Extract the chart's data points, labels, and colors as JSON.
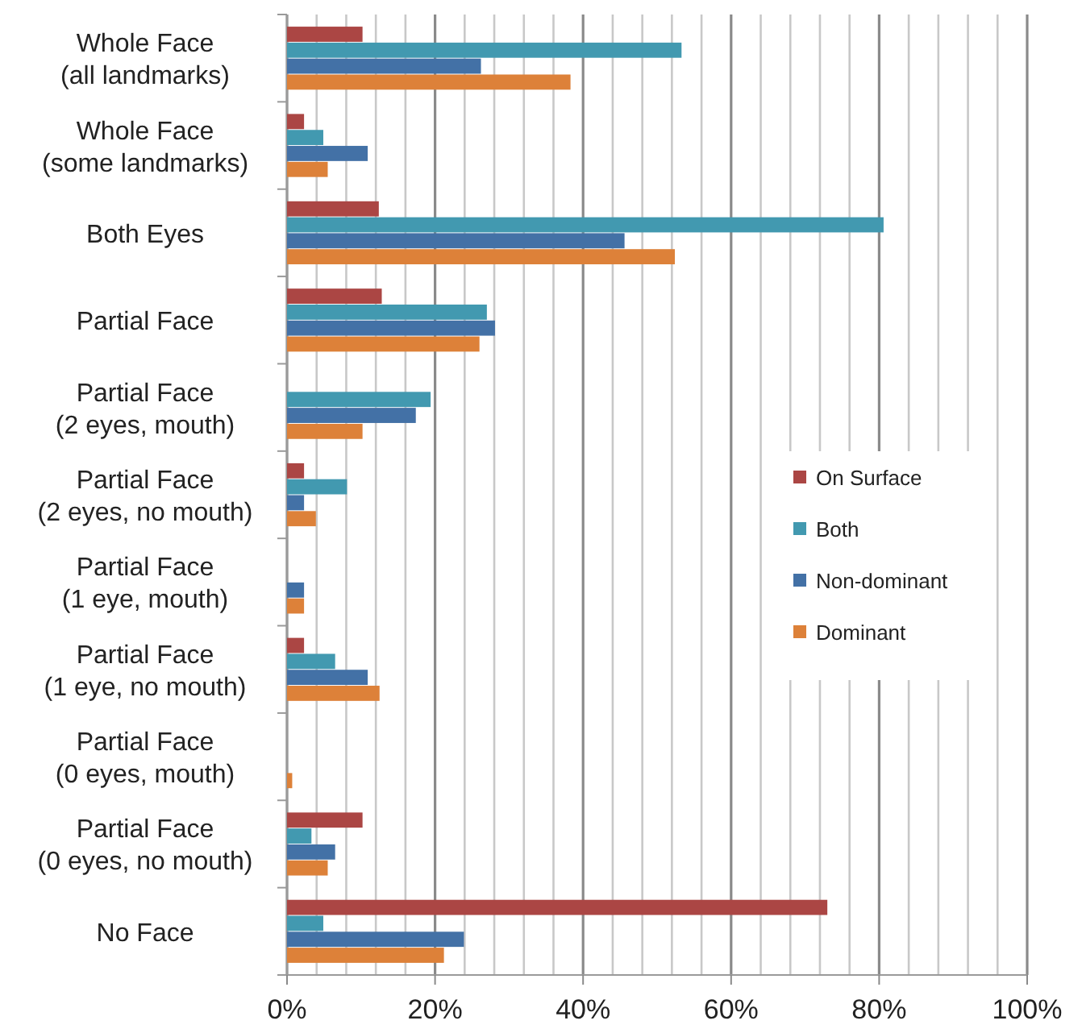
{
  "chart_data": {
    "type": "bar",
    "orientation": "horizontal",
    "categories": [
      "Whole Face (all landmarks)",
      "Whole Face (some landmarks)",
      "Both Eyes",
      "Partial Face",
      "Partial Face (2 eyes, mouth)",
      "Partial Face (2 eyes, no mouth)",
      "Partial Face (1 eye, mouth)",
      "Partial Face (1 eye, no mouth)",
      "Partial Face (0 eyes, mouth)",
      "Partial Face (0 eyes, no mouth)",
      "No Face"
    ],
    "series": [
      {
        "name": "On Surface",
        "color": "#ab4644",
        "values": [
          10.2,
          2.3,
          12.4,
          12.8,
          null,
          2.3,
          null,
          2.3,
          null,
          10.2,
          73.0
        ]
      },
      {
        "name": "Both",
        "color": "#4299b0",
        "values": [
          53.3,
          4.9,
          80.6,
          27.0,
          19.4,
          8.1,
          null,
          6.5,
          null,
          3.3,
          4.9
        ]
      },
      {
        "name": "Non-dominant",
        "color": "#4371a6",
        "values": [
          26.2,
          10.9,
          45.6,
          28.1,
          17.4,
          2.3,
          2.3,
          10.9,
          null,
          6.5,
          23.9
        ]
      },
      {
        "name": "Dominant",
        "color": "#dd8139",
        "values": [
          38.3,
          5.5,
          52.4,
          26.0,
          10.2,
          3.9,
          2.3,
          12.5,
          0.7,
          5.5,
          21.2
        ]
      }
    ],
    "xlim": [
      0,
      100
    ],
    "xticks": [
      {
        "value": 0,
        "label": "0%"
      },
      {
        "value": 4,
        "label": null
      },
      {
        "value": 8,
        "label": null
      },
      {
        "value": 12,
        "label": null
      },
      {
        "value": 16,
        "label": null
      },
      {
        "value": 20,
        "label": "20%"
      },
      {
        "value": 24,
        "label": null
      },
      {
        "value": 28,
        "label": null
      },
      {
        "value": 32,
        "label": null
      },
      {
        "value": 36,
        "label": null
      },
      {
        "value": 40,
        "label": "40%"
      },
      {
        "value": 44,
        "label": null
      },
      {
        "value": 48,
        "label": null
      },
      {
        "value": 52,
        "label": null
      },
      {
        "value": 56,
        "label": null
      },
      {
        "value": 60,
        "label": "60%"
      },
      {
        "value": 64,
        "label": null
      },
      {
        "value": 68,
        "label": null
      },
      {
        "value": 72,
        "label": null
      },
      {
        "value": 76,
        "label": null
      },
      {
        "value": 80,
        "label": "80%"
      },
      {
        "value": 84,
        "label": null
      },
      {
        "value": 88,
        "label": null
      },
      {
        "value": 92,
        "label": null
      },
      {
        "value": 96,
        "label": null
      },
      {
        "value": 100,
        "label": "100%"
      }
    ],
    "grid": "x",
    "legend": "right"
  }
}
